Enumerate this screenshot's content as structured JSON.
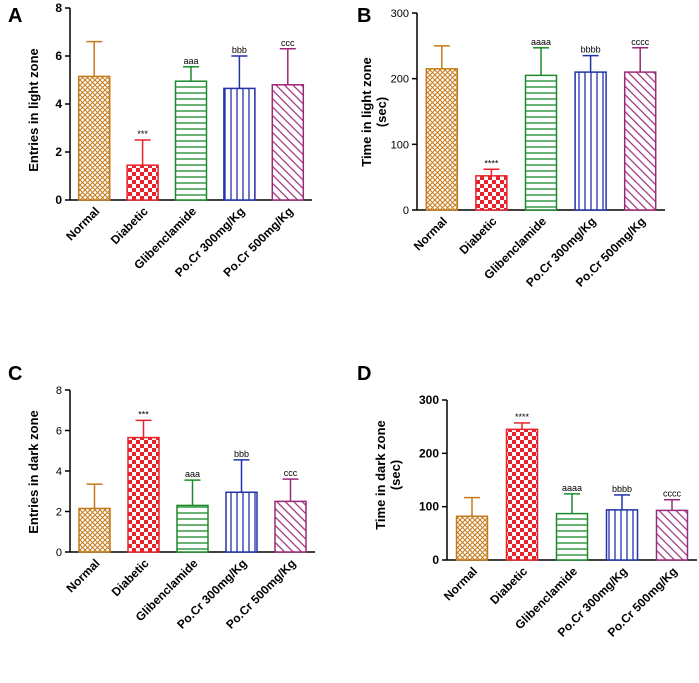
{
  "colors": {
    "Normal": "#c47a1a",
    "Diabetic": "#e8222a",
    "Glibenclamide": "#1a8a2a",
    "Po.Cr 300mg/Kg": "#2233aa",
    "Po.Cr 500mg/Kg": "#9a2a78"
  },
  "chart_data": [
    {
      "panel": "A",
      "type": "bar",
      "ylabel": "Entries in light zone",
      "ylim": [
        0,
        8
      ],
      "yticks": [
        0,
        2,
        4,
        6,
        8
      ],
      "categories": [
        "Normal",
        "Diabetic",
        "Glibenclamide",
        "Po.Cr 300mg/Kg",
        "Po.Cr 500mg/Kg"
      ],
      "values": [
        5.15,
        1.45,
        4.95,
        4.65,
        4.8
      ],
      "errors": [
        1.45,
        1.05,
        0.6,
        1.35,
        1.5
      ],
      "annotations": [
        "",
        "***",
        "aaa",
        "bbb",
        "ccc"
      ]
    },
    {
      "panel": "B",
      "type": "bar",
      "ylabel": "Time in light zone (sec)",
      "ylim": [
        0,
        300
      ],
      "yticks": [
        0,
        100,
        200,
        300
      ],
      "categories": [
        "Normal",
        "Diabetic",
        "Glibenclamide",
        "Po.Cr 300mg/Kg",
        "Po.Cr 500mg/Kg"
      ],
      "values": [
        215,
        52,
        205,
        210,
        210
      ],
      "errors": [
        35,
        10,
        42,
        25,
        37
      ],
      "annotations": [
        "",
        "****",
        "aaaa",
        "bbbb",
        "cccc"
      ]
    },
    {
      "panel": "C",
      "type": "bar",
      "ylabel": "Entries in dark zone",
      "ylim": [
        0,
        8
      ],
      "yticks": [
        0,
        2,
        4,
        6,
        8
      ],
      "categories": [
        "Normal",
        "Diabetic",
        "Glibenclamide",
        "Po.Cr 300mg/Kg",
        "Po.Cr 500mg/Kg"
      ],
      "values": [
        2.15,
        5.65,
        2.3,
        2.95,
        2.5
      ],
      "errors": [
        1.2,
        0.85,
        1.25,
        1.6,
        1.1
      ],
      "annotations": [
        "",
        "***",
        "aaa",
        "bbb",
        "ccc"
      ]
    },
    {
      "panel": "D",
      "type": "bar",
      "ylabel": "Time in dark zone (sec)",
      "ylim": [
        0,
        300
      ],
      "yticks": [
        0,
        100,
        200,
        300
      ],
      "categories": [
        "Normal",
        "Diabetic",
        "Glibenclamide",
        "Po.Cr 300mg/Kg",
        "Po.Cr 500mg/Kg"
      ],
      "values": [
        82,
        245,
        87,
        94,
        93
      ],
      "errors": [
        35,
        12,
        37,
        28,
        20
      ],
      "annotations": [
        "",
        "****",
        "aaaa",
        "bbbb",
        "cccc"
      ]
    }
  ]
}
